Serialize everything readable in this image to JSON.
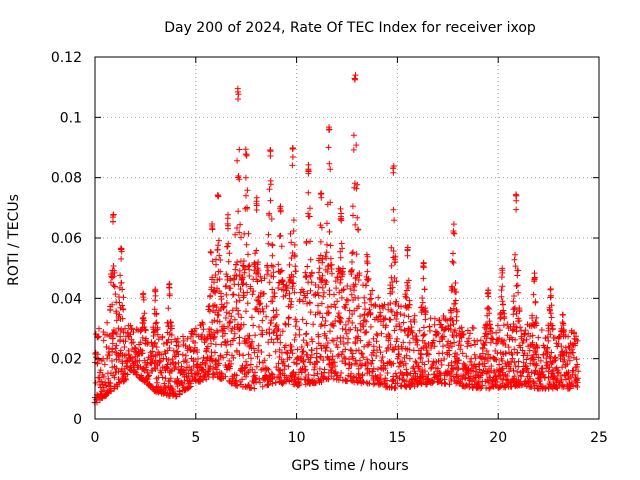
{
  "chart_data": {
    "type": "scatter",
    "title": "Day 200 of 2024, Rate Of TEC Index for receiver ixop",
    "xlabel": "GPS time / hours",
    "ylabel": "ROTI / TECUs",
    "xlim": [
      0,
      25
    ],
    "ylim": [
      0,
      0.12
    ],
    "xticks": [
      0,
      5,
      10,
      15,
      20,
      25
    ],
    "yticks": [
      0,
      0.02,
      0.04,
      0.06,
      0.08,
      0.1,
      0.12
    ],
    "xtick_labels": [
      "0",
      "5",
      "10",
      "15",
      "20",
      "25"
    ],
    "ytick_labels": [
      "0",
      "0.02",
      "0.04",
      "0.06",
      "0.08",
      "0.1",
      "0.12"
    ],
    "grid": true,
    "marker": "+",
    "color": "#ff0000",
    "series": [
      {
        "name": "ROTI",
        "x_range": [
          0,
          24
        ],
        "note": "dense cloud of points; representative values sampled every 0.05 h",
        "baseline_low": [
          0.005,
          0.01,
          0.015,
          0.009,
          0.007,
          0.012,
          0.014,
          0.011,
          0.01,
          0.012,
          0.011,
          0.012,
          0.013,
          0.012,
          0.011,
          0.01,
          0.011,
          0.012,
          0.011,
          0.01,
          0.01,
          0.011,
          0.01,
          0.01,
          0.01
        ],
        "baseline_high": [
          0.03,
          0.035,
          0.03,
          0.028,
          0.027,
          0.03,
          0.038,
          0.045,
          0.048,
          0.045,
          0.045,
          0.045,
          0.048,
          0.046,
          0.042,
          0.038,
          0.035,
          0.035,
          0.033,
          0.03,
          0.032,
          0.033,
          0.03,
          0.028,
          0.03
        ],
        "peaks": [
          {
            "x": 0.9,
            "y": 0.068
          },
          {
            "x": 1.3,
            "y": 0.057
          },
          {
            "x": 2.4,
            "y": 0.042
          },
          {
            "x": 3.0,
            "y": 0.043
          },
          {
            "x": 3.7,
            "y": 0.045
          },
          {
            "x": 5.8,
            "y": 0.066
          },
          {
            "x": 6.1,
            "y": 0.075
          },
          {
            "x": 6.6,
            "y": 0.068
          },
          {
            "x": 7.1,
            "y": 0.11
          },
          {
            "x": 7.5,
            "y": 0.09
          },
          {
            "x": 8.0,
            "y": 0.074
          },
          {
            "x": 8.7,
            "y": 0.09
          },
          {
            "x": 9.2,
            "y": 0.072
          },
          {
            "x": 9.8,
            "y": 0.09
          },
          {
            "x": 10.6,
            "y": 0.085
          },
          {
            "x": 11.2,
            "y": 0.075
          },
          {
            "x": 11.6,
            "y": 0.097
          },
          {
            "x": 12.2,
            "y": 0.07
          },
          {
            "x": 12.9,
            "y": 0.115
          },
          {
            "x": 13.5,
            "y": 0.055
          },
          {
            "x": 14.8,
            "y": 0.084
          },
          {
            "x": 15.5,
            "y": 0.058
          },
          {
            "x": 16.3,
            "y": 0.052
          },
          {
            "x": 17.8,
            "y": 0.065
          },
          {
            "x": 19.5,
            "y": 0.044
          },
          {
            "x": 20.2,
            "y": 0.05
          },
          {
            "x": 20.9,
            "y": 0.075
          },
          {
            "x": 21.8,
            "y": 0.049
          },
          {
            "x": 22.6,
            "y": 0.044
          },
          {
            "x": 23.2,
            "y": 0.035
          }
        ]
      }
    ]
  }
}
